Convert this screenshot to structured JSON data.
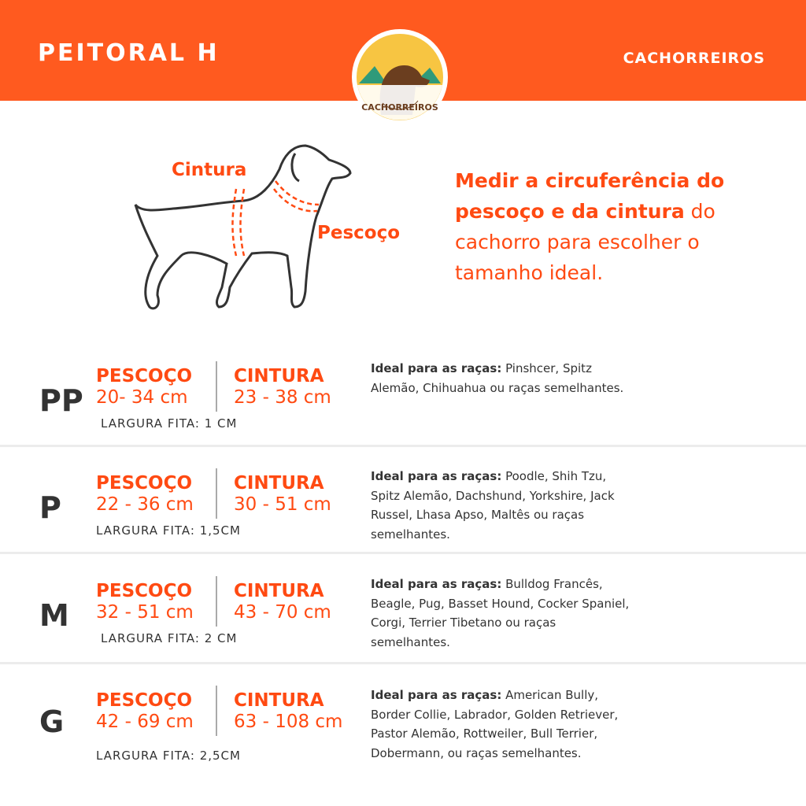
{
  "header": {
    "title": "PEITORAL H",
    "brand": "CACHORREIROS",
    "logo_text": "CACHORREIROS",
    "color": "#ff5a1f"
  },
  "illustration": {
    "waist_label": "Cintura",
    "neck_label": "Pescoço"
  },
  "intro": {
    "bold": "Medir a circuferência do pescoço e da cintura",
    "rest": " do cachorro para escolher o tamanho ideal."
  },
  "sizes": [
    {
      "size": "PP",
      "neck_label": "PESCOÇO",
      "neck": "20- 34 cm",
      "waist_label": "CINTURA",
      "waist": "23 - 38 cm",
      "strap": "LARGURA FITA: 1 CM",
      "breeds_label": "Ideal para as raças:",
      "breeds": " Pinshcer, Spitz Alemão, Chihuahua ou raças semelhantes."
    },
    {
      "size": "P",
      "neck_label": "PESCOÇO",
      "neck": "22 - 36 cm",
      "waist_label": "CINTURA",
      "waist": "30 - 51 cm",
      "strap": "LARGURA FITA: 1,5CM",
      "breeds_label": "Ideal para as raças:",
      "breeds": " Poodle, Shih Tzu, Spitz Alemão, Dachshund, Yorkshire, Jack Russel, Lhasa Apso, Maltês ou raças semelhantes."
    },
    {
      "size": "M",
      "neck_label": "PESCOÇO",
      "neck": "32 - 51 cm",
      "waist_label": "CINTURA",
      "waist": "43 - 70 cm",
      "strap": "LARGURA FITA: 2 CM",
      "breeds_label": "Ideal para as raças:",
      "breeds": " Bulldog Francês, Beagle, Pug, Basset Hound, Cocker Spaniel, Corgi, Terrier Tibetano ou raças semelhantes."
    },
    {
      "size": "G",
      "neck_label": "PESCOÇO",
      "neck": "42 - 69 cm",
      "waist_label": "CINTURA",
      "waist": "63 - 108 cm",
      "strap": "LARGURA FITA: 2,5CM",
      "breeds_label": "Ideal para as raças:",
      "breeds": " American Bully, Border Collie, Labrador, Golden Retriever, Pastor Alemão, Rottweiler, Bull Terrier, Dobermann, ou raças semelhantes."
    }
  ]
}
